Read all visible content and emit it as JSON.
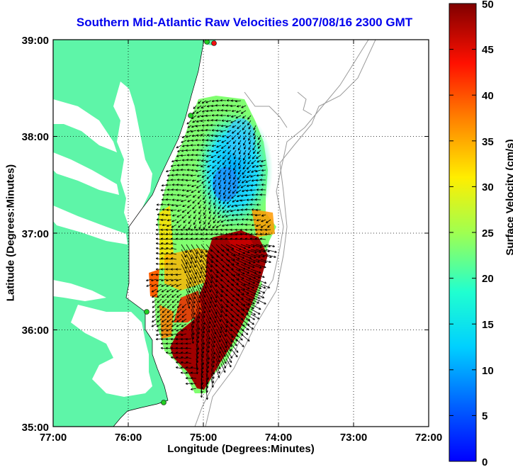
{
  "title": "Southern Mid-Atlantic Raw Velocities 2007/08/16 2300 GMT",
  "xlabel": "Longitude (Degrees:Minutes)",
  "ylabel": "Latitude (Degrees:Minutes)",
  "map": {
    "lon_ticks": [
      "77:00",
      "76:00",
      "75:00",
      "74:00",
      "73:00",
      "72:00"
    ],
    "lat_ticks": [
      "39:00",
      "38:00",
      "37:00",
      "36:00",
      "35:00"
    ],
    "lon_range": [
      -77,
      -72
    ],
    "lat_range": [
      35,
      39
    ],
    "grid": "dotted",
    "land_color": "#5ef5a8",
    "bathymetry_color": "#9a9a9a"
  },
  "colorbar": {
    "label": "Surface Velocity (cm/s)",
    "range": [
      0,
      50
    ],
    "ticks": [
      "0",
      "5",
      "10",
      "15",
      "20",
      "25",
      "30",
      "35",
      "40",
      "45",
      "50"
    ],
    "colormap": "jet"
  }
}
